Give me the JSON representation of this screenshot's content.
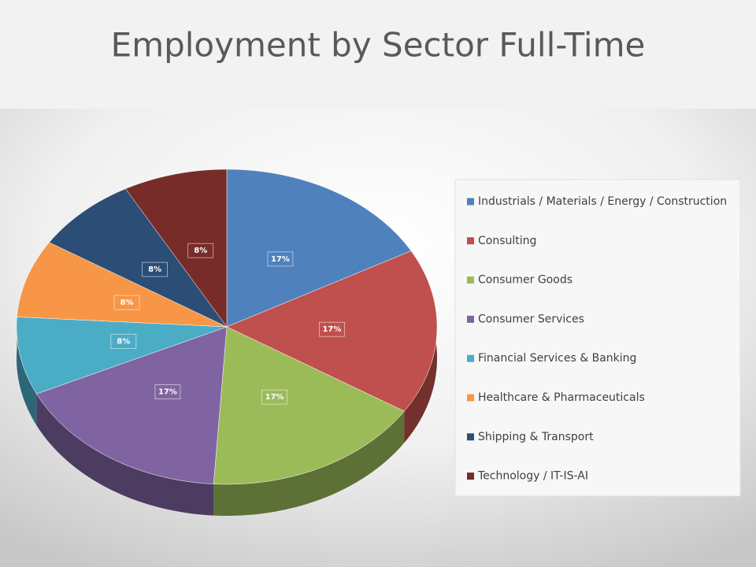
{
  "chart_data": {
    "type": "pie",
    "title": "Employment by Sector  Full-Time",
    "categories": [
      "Industrials / Materials / Energy / Construction",
      "Consulting",
      "Consumer Goods",
      "Consumer Services",
      "Financial Services & Banking",
      "Healthcare & Pharmaceuticals",
      "Shipping & Transport",
      "Technology / IT-IS-AI"
    ],
    "values": [
      17,
      17,
      17,
      17,
      8,
      8,
      8,
      8
    ],
    "value_labels": [
      "17%",
      "17%",
      "17%",
      "17%",
      "8%",
      "8%",
      "8%",
      "8%"
    ],
    "colors": [
      "#4f81bd",
      "#c0504d",
      "#9bbb59",
      "#8064a2",
      "#4bacc6",
      "#f79646",
      "#2c4d75",
      "#772c2a"
    ],
    "legend": "right"
  }
}
